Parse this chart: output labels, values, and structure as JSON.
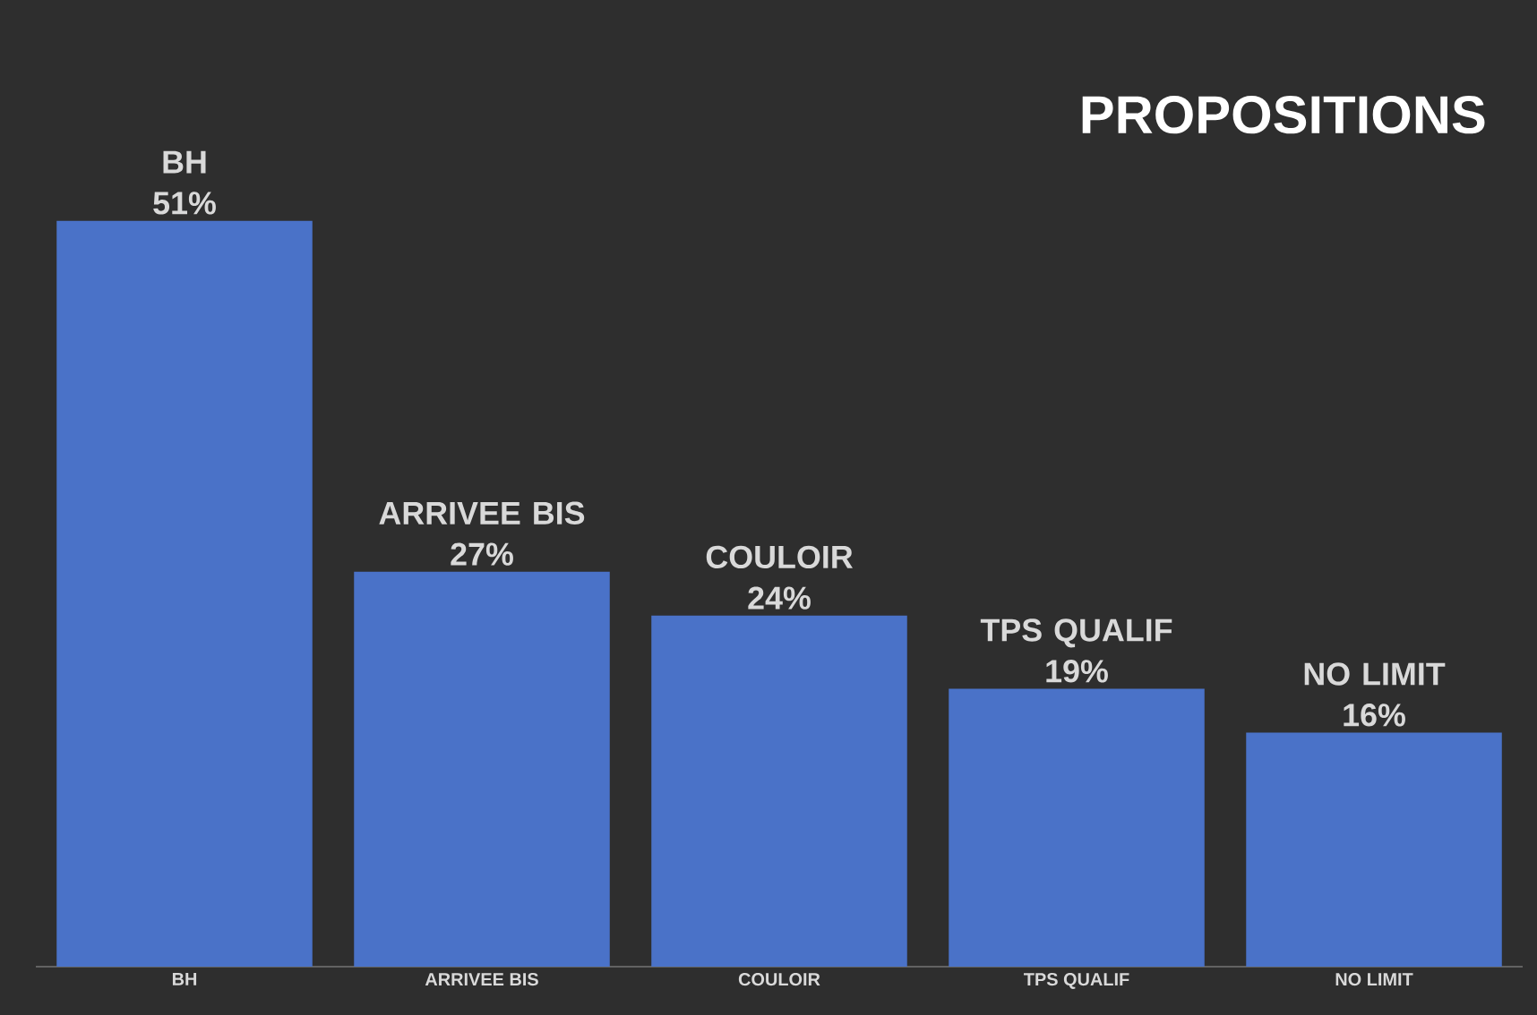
{
  "chart_data": {
    "type": "bar",
    "title": "PROPOSITIONS",
    "categories": [
      "BH",
      "ARRIVEE BIS",
      "COULOIR",
      "TPS QUALIF",
      "NO LIMIT"
    ],
    "values": [
      51,
      27,
      24,
      19,
      16
    ],
    "value_labels": [
      "51%",
      "27%",
      "24%",
      "19%",
      "16%"
    ],
    "color": "#4a72c8",
    "tick_labels": "x"
  }
}
